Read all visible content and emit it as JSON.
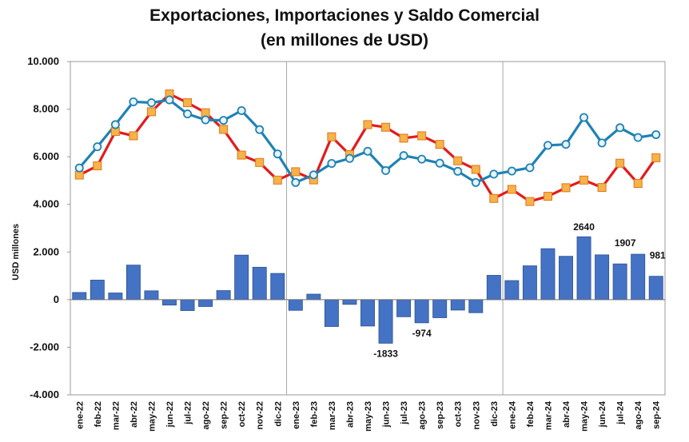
{
  "chart_data": {
    "type": "bar+line",
    "title": "Exportaciones, Importaciones y Saldo Comercial",
    "subtitle": "(en millones de USD)",
    "ylabel": "USD millones",
    "xlabel": "",
    "ylim": [
      -4000,
      10000
    ],
    "yticks": [
      -4000,
      -2000,
      0,
      2000,
      4000,
      6000,
      8000,
      10000
    ],
    "ytick_labels": [
      "-4.000",
      "-2.000",
      "0",
      "2.000",
      "4.000",
      "6.000",
      "8.000",
      "10.000"
    ],
    "grid": "vertical lines at year boundaries",
    "categories": [
      "ene-22",
      "feb-22",
      "mar-22",
      "abr-22",
      "may-22",
      "jun-22",
      "jul-22",
      "ago-22",
      "sep-22",
      "oct-22",
      "nov-22",
      "dic-22",
      "ene-23",
      "feb-23",
      "mar-23",
      "abr-23",
      "may-23",
      "jun-23",
      "jul-23",
      "ago-23",
      "sep-23",
      "oct-23",
      "nov-23",
      "dic-23",
      "ene-24",
      "feb-24",
      "mar-24",
      "abr-24",
      "may-24",
      "jun-24",
      "jul-24",
      "ago-24",
      "sep-24"
    ],
    "series": [
      {
        "kind": "bar",
        "color": "#4472C4",
        "values": [
          300,
          820,
          280,
          1450,
          370,
          -230,
          -460,
          -290,
          380,
          1870,
          1360,
          1100,
          -450,
          230,
          -1130,
          -200,
          -1110,
          -1833,
          -720,
          -974,
          -760,
          -440,
          -550,
          1020,
          800,
          1420,
          2140,
          1820,
          2640,
          1880,
          1500,
          1907,
          981
        ]
      },
      {
        "kind": "line",
        "color": "#1F82B4",
        "marker": "circle",
        "values": [
          5530,
          6420,
          7350,
          8310,
          8270,
          8390,
          7800,
          7550,
          7530,
          7940,
          7140,
          6120,
          4920,
          5240,
          5720,
          5930,
          6230,
          5420,
          6050,
          5900,
          5730,
          5390,
          4920,
          5270,
          5400,
          5540,
          6480,
          6520,
          7650,
          6580,
          7220,
          6810,
          6930
        ]
      },
      {
        "kind": "line",
        "color": "#E31A1C",
        "marker": "square",
        "values": [
          5230,
          5620,
          7060,
          6880,
          7890,
          8640,
          8270,
          7850,
          7150,
          6070,
          5760,
          5020,
          5370,
          5030,
          6840,
          6090,
          7350,
          7240,
          6780,
          6880,
          6520,
          5830,
          5470,
          4250,
          4630,
          4120,
          4340,
          4700,
          5020,
          4710,
          5730,
          4880,
          5960
        ]
      }
    ],
    "data_labels": [
      {
        "category": "jun-23",
        "text": "-1833"
      },
      {
        "category": "ago-23",
        "text": "-974"
      },
      {
        "category": "may-24",
        "text": "2640"
      },
      {
        "category": "ago-24",
        "text": "1907"
      },
      {
        "category": "sep-24",
        "text": "981"
      }
    ]
  }
}
